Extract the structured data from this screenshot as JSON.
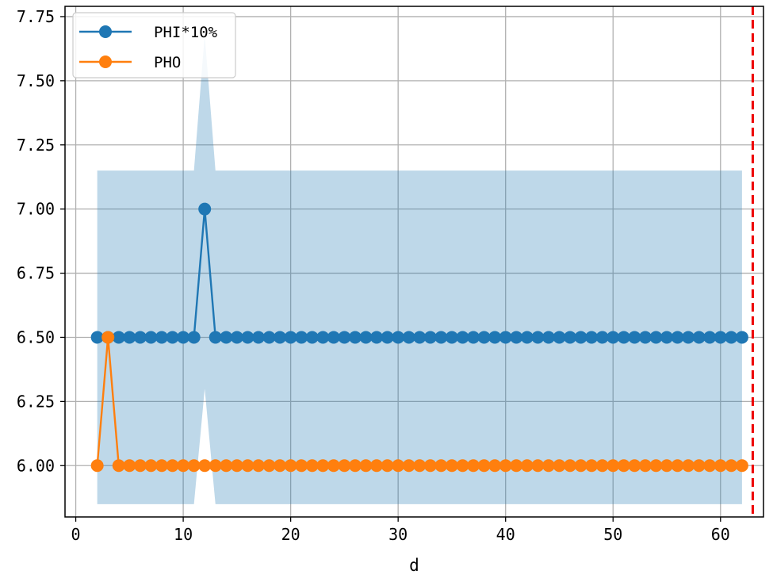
{
  "chart_data": {
    "type": "line",
    "title": "",
    "xlabel": "d",
    "ylabel": "",
    "xlim": [
      -1,
      64
    ],
    "ylim": [
      5.8,
      7.79
    ],
    "x_ticks": [
      0,
      10,
      20,
      30,
      40,
      50,
      60
    ],
    "y_ticks": [
      6.0,
      6.25,
      6.5,
      6.75,
      7.0,
      7.25,
      7.5,
      7.75
    ],
    "x_tick_labels": [
      "0",
      "10",
      "20",
      "30",
      "40",
      "50",
      "60"
    ],
    "y_tick_labels": [
      "6.00",
      "6.25",
      "6.50",
      "6.75",
      "7.00",
      "7.25",
      "7.50",
      "7.75"
    ],
    "grid": true,
    "legend_position": "upper-left",
    "x": [
      2,
      3,
      4,
      5,
      6,
      7,
      8,
      9,
      10,
      11,
      12,
      13,
      14,
      15,
      16,
      17,
      18,
      19,
      20,
      21,
      22,
      23,
      24,
      25,
      26,
      27,
      28,
      29,
      30,
      31,
      32,
      33,
      34,
      35,
      36,
      37,
      38,
      39,
      40,
      41,
      42,
      43,
      44,
      45,
      46,
      47,
      48,
      49,
      50,
      51,
      52,
      53,
      54,
      55,
      56,
      57,
      58,
      59,
      60,
      61,
      62
    ],
    "series": [
      {
        "name": "PHI*10%",
        "color": "#1f77b4",
        "values": [
          6.5,
          6.5,
          6.5,
          6.5,
          6.5,
          6.5,
          6.5,
          6.5,
          6.5,
          6.5,
          7.0,
          6.5,
          6.5,
          6.5,
          6.5,
          6.5,
          6.5,
          6.5,
          6.5,
          6.5,
          6.5,
          6.5,
          6.5,
          6.5,
          6.5,
          6.5,
          6.5,
          6.5,
          6.5,
          6.5,
          6.5,
          6.5,
          6.5,
          6.5,
          6.5,
          6.5,
          6.5,
          6.5,
          6.5,
          6.5,
          6.5,
          6.5,
          6.5,
          6.5,
          6.5,
          6.5,
          6.5,
          6.5,
          6.5,
          6.5,
          6.5,
          6.5,
          6.5,
          6.5,
          6.5,
          6.5,
          6.5,
          6.5,
          6.5,
          6.5,
          6.5
        ]
      },
      {
        "name": "PHO",
        "color": "#ff7f0e",
        "values": [
          6.0,
          6.5,
          6.0,
          6.0,
          6.0,
          6.0,
          6.0,
          6.0,
          6.0,
          6.0,
          6.0,
          6.0,
          6.0,
          6.0,
          6.0,
          6.0,
          6.0,
          6.0,
          6.0,
          6.0,
          6.0,
          6.0,
          6.0,
          6.0,
          6.0,
          6.0,
          6.0,
          6.0,
          6.0,
          6.0,
          6.0,
          6.0,
          6.0,
          6.0,
          6.0,
          6.0,
          6.0,
          6.0,
          6.0,
          6.0,
          6.0,
          6.0,
          6.0,
          6.0,
          6.0,
          6.0,
          6.0,
          6.0,
          6.0,
          6.0,
          6.0,
          6.0,
          6.0,
          6.0,
          6.0,
          6.0,
          6.0,
          6.0,
          6.0,
          6.0,
          6.0
        ]
      }
    ],
    "band": {
      "color": "#1f77b4",
      "opacity": 0.29,
      "x": [
        2,
        11,
        12,
        13,
        62
      ],
      "upper": [
        7.15,
        7.15,
        7.68,
        7.15,
        7.15
      ],
      "lower": [
        5.85,
        5.85,
        6.3,
        5.85,
        5.85
      ]
    },
    "vline": {
      "x": 63,
      "color": "#ee0000",
      "style": "dashed"
    }
  }
}
